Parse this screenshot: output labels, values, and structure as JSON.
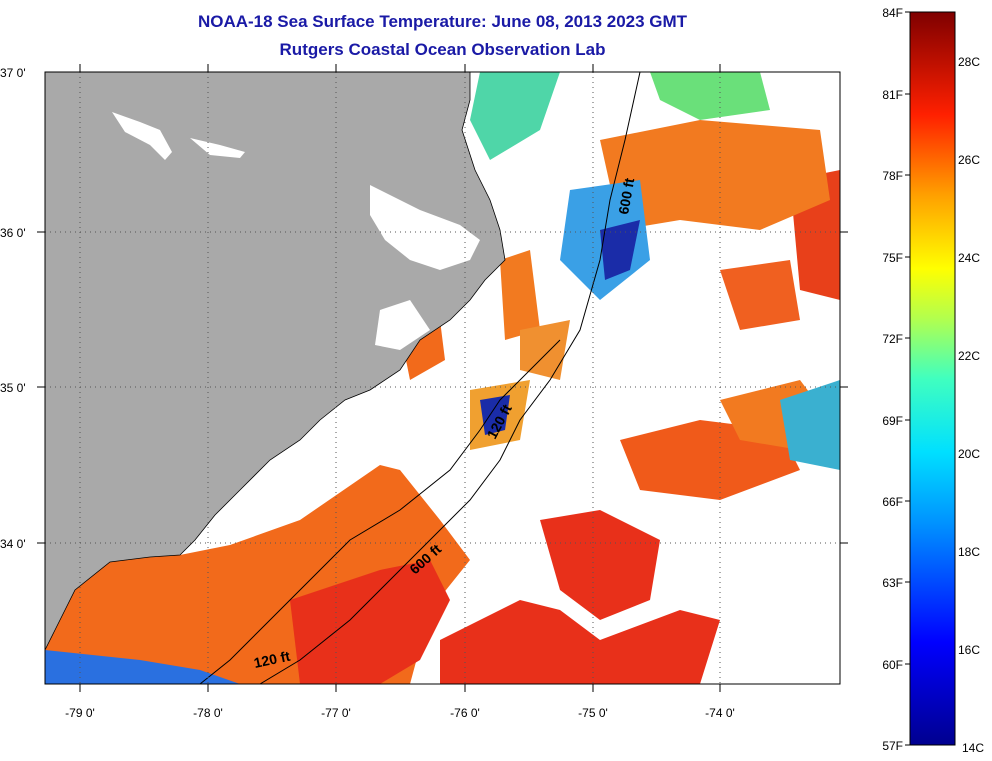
{
  "title": {
    "line1": "NOAA-18 Sea Surface Temperature:  June 08, 2013 2023 GMT",
    "line2": "Rutgers Coastal Ocean Observation Lab"
  },
  "axes": {
    "longitude_labels": [
      "-79 0'",
      "-78 0'",
      "-77 0'",
      "-76 0'",
      "-75 0'",
      "-74 0'"
    ],
    "latitude_labels": [
      "37 0'",
      "36 0'",
      "35 0'",
      "34 0'"
    ]
  },
  "depth_contours": {
    "label_600_north": "600 ft",
    "label_120_mid": "120 ft",
    "label_600_south": "600 ft",
    "label_120_south": "120 ft"
  },
  "colorbar": {
    "fahrenheit": [
      "84F",
      "81F",
      "78F",
      "75F",
      "72F",
      "69F",
      "66F",
      "63F",
      "60F",
      "57F"
    ],
    "celsius": [
      "28C",
      "26C",
      "24C",
      "22C",
      "20C",
      "18C",
      "16C",
      "14C"
    ]
  },
  "colors": {
    "land": "#a9a9a9",
    "title": "#1a1aa6",
    "warm": "#f26a1b",
    "hot": "#e8301a",
    "cool": "#3aa0e6",
    "cold": "#1a2ca8"
  }
}
